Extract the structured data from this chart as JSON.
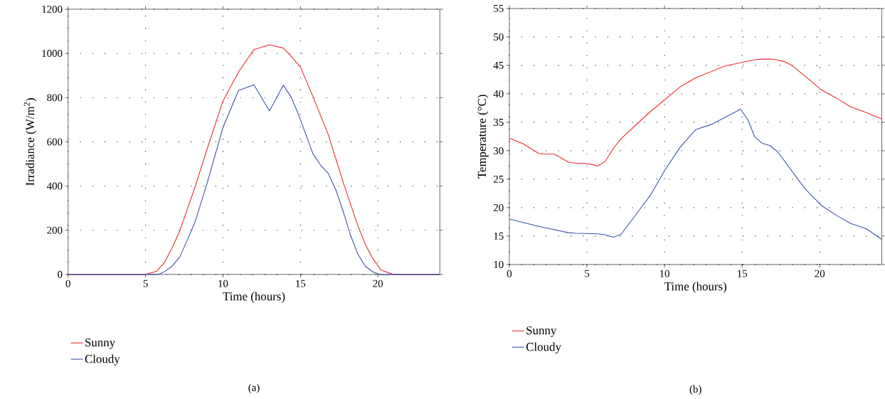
{
  "chart_data": [
    {
      "type": "line",
      "xlabel": "Time (hours)",
      "ylabel": "Irradiance (W/m$^{2}$)",
      "xlim": [
        0,
        24
      ],
      "ylim": [
        0,
        1200
      ],
      "xticks": [
        0,
        5,
        10,
        15,
        20
      ],
      "yticks": [
        0,
        200,
        400,
        600,
        800,
        1000,
        1200
      ],
      "grid": true,
      "legend": "bottom",
      "annotations": [
        "(a)"
      ],
      "series": [
        {
          "name": "Sunny",
          "color": "#ee2a2e",
          "x": [
            0,
            5,
            5.7,
            6.2,
            6.7,
            7.2,
            8.2,
            9.1,
            10,
            11,
            12,
            13,
            13.9,
            14.4,
            15,
            15.8,
            16.8,
            17.8,
            18.7,
            19.2,
            19.7,
            20.2,
            21,
            24
          ],
          "values": [
            0,
            0,
            14,
            52,
            118,
            195,
            397,
            594,
            785,
            916,
            1017,
            1039,
            1024,
            987,
            938,
            806,
            632,
            408,
            222,
            134,
            69,
            20,
            0,
            0
          ]
        },
        {
          "name": "Cloudy",
          "color": "#3a55a5",
          "x": [
            0,
            5.8,
            6.2,
            6.7,
            7.2,
            7.7,
            8.2,
            9,
            10,
            11,
            12,
            13,
            13.4,
            13.9,
            14.4,
            14.9,
            15.8,
            16.3,
            16.8,
            17.3,
            17.8,
            18.2,
            18.7,
            19.2,
            19.7,
            20.1,
            24
          ],
          "values": [
            0,
            0,
            12,
            36,
            78,
            156,
            238,
            419,
            665,
            832,
            858,
            740,
            792,
            856,
            803,
            719,
            548,
            495,
            457,
            380,
            277,
            184,
            93,
            36,
            11,
            0,
            0
          ]
        }
      ]
    },
    {
      "type": "line",
      "xlabel": "Time (hours)",
      "ylabel": "Temperature (°C)",
      "xlim": [
        0,
        24
      ],
      "ylim": [
        10,
        55
      ],
      "xticks": [
        0,
        5,
        10,
        15,
        20
      ],
      "yticks": [
        10,
        15,
        20,
        25,
        30,
        35,
        40,
        45,
        50,
        55
      ],
      "grid": true,
      "legend": "bottom",
      "annotations": [
        "(b)"
      ],
      "series": [
        {
          "name": "Sunny",
          "color": "#ee2a2e",
          "x": [
            0,
            0.9,
            1.9,
            2.4,
            2.9,
            3.3,
            3.8,
            4.3,
            4.8,
            5.3,
            5.7,
            6.2,
            6.7,
            7.2,
            8.1,
            9.1,
            11,
            12,
            13.9,
            15.8,
            16.3,
            16.8,
            17.2,
            17.7,
            18.2,
            19.1,
            20.1,
            21.1,
            22,
            23,
            24
          ],
          "values": [
            32.2,
            31.2,
            29.5,
            29.4,
            29.4,
            28.8,
            28.0,
            27.8,
            27.8,
            27.6,
            27.3,
            28.2,
            30.4,
            32.1,
            34.4,
            36.9,
            41.2,
            42.8,
            44.9,
            46.0,
            46.1,
            46.1,
            46.0,
            45.7,
            45.0,
            43.0,
            40.7,
            39.2,
            37.7,
            36.7,
            35.6
          ]
        },
        {
          "name": "Cloudy",
          "color": "#3a55a5",
          "x": [
            0,
            1.9,
            3.8,
            4.3,
            5.7,
            6.2,
            6.7,
            7.2,
            8.6,
            9.1,
            10,
            11,
            12,
            13,
            14.9,
            15.4,
            15.8,
            16.3,
            16.8,
            17.3,
            18.7,
            19.1,
            20.1,
            21.1,
            22,
            23,
            24
          ],
          "values": [
            18.0,
            16.7,
            15.6,
            15.5,
            15.4,
            15.2,
            14.8,
            15.3,
            20.4,
            22.2,
            26.5,
            30.6,
            33.7,
            34.6,
            37.3,
            35.3,
            32.5,
            31.3,
            30.9,
            29.8,
            24.6,
            23.2,
            20.4,
            18.6,
            17.2,
            16.3,
            14.4
          ]
        }
      ]
    }
  ]
}
